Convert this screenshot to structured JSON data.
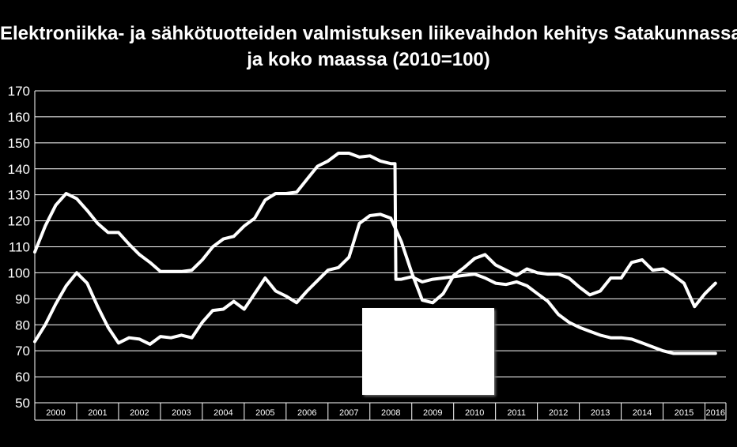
{
  "title_line1": "Elektroniikka- ja sähkötuotteiden valmistuksen liikevaihdon kehitys Satakunnassa",
  "title_line2": "ja koko maassa (2010=100)",
  "colors": {
    "background": "#000000",
    "lines": "#ffffff",
    "text": "#ffffff",
    "grid": "#ffffff"
  },
  "chart_data": {
    "type": "line",
    "title": "Elektroniikka- ja sähkötuotteiden valmistuksen liikevaihdon kehitys Satakunnassa ja koko maassa (2010=100)",
    "xlabel": "",
    "ylabel": "",
    "ylim": [
      50,
      170
    ],
    "yticks": [
      50,
      60,
      70,
      80,
      90,
      100,
      110,
      120,
      130,
      140,
      150,
      160,
      170
    ],
    "xlim": [
      2000,
      2016.5
    ],
    "xticks": [
      "2000",
      "2001",
      "2002",
      "2003",
      "2004",
      "2005",
      "2006",
      "2007",
      "2008",
      "2009",
      "2010",
      "2011",
      "2012",
      "2013",
      "2014",
      "2015",
      "2016"
    ],
    "grid": true,
    "legend": "hidden",
    "series": [
      {
        "x": [
          2000.0,
          2000.25,
          2000.5,
          2000.75,
          2001.0,
          2001.25,
          2001.5,
          2001.75,
          2002.0,
          2002.25,
          2002.5,
          2002.75,
          2003.0,
          2003.25,
          2003.5,
          2003.75,
          2004.0,
          2004.25,
          2004.5,
          2004.75,
          2005.0,
          2005.25,
          2005.5,
          2005.75,
          2006.0,
          2006.25,
          2006.5,
          2006.75,
          2007.0,
          2007.25,
          2007.5,
          2007.75,
          2008.0,
          2008.25,
          2008.5,
          2008.6,
          2008.62,
          2008.75,
          2009.0,
          2009.25,
          2009.5,
          2009.75,
          2010.0,
          2010.25,
          2010.5,
          2010.75,
          2011.0,
          2011.25,
          2011.5,
          2011.75,
          2012.0,
          2012.25,
          2012.5,
          2012.75,
          2013.0,
          2013.25,
          2013.5,
          2013.75,
          2014.0,
          2014.25,
          2014.5,
          2014.75,
          2015.0,
          2015.25,
          2015.5,
          2015.75,
          2016.0,
          2016.25
        ],
        "values": [
          108,
          118,
          126,
          130.5,
          128.5,
          124,
          119,
          115.5,
          115.5,
          111,
          107,
          104,
          100.5,
          100.5,
          100.5,
          101,
          105,
          110,
          113,
          114,
          118,
          121,
          128,
          130.5,
          130.5,
          131,
          136,
          141,
          143,
          146,
          146,
          144.5,
          145,
          143,
          142,
          142,
          97.5,
          97.5,
          98.5,
          96.5,
          97.5,
          98,
          98.5,
          99,
          99.5,
          98,
          96,
          95.5,
          96.5,
          95,
          92,
          89,
          84,
          81,
          79,
          77.5,
          76,
          75,
          75,
          74.5,
          73,
          71.5,
          70,
          69,
          69,
          69,
          69,
          69
        ]
      },
      {
        "x": [
          2000.0,
          2000.25,
          2000.5,
          2000.75,
          2001.0,
          2001.25,
          2001.5,
          2001.75,
          2002.0,
          2002.25,
          2002.5,
          2002.75,
          2003.0,
          2003.25,
          2003.5,
          2003.75,
          2004.0,
          2004.25,
          2004.5,
          2004.75,
          2005.0,
          2005.25,
          2005.5,
          2005.75,
          2006.0,
          2006.25,
          2006.5,
          2006.75,
          2007.0,
          2007.25,
          2007.5,
          2007.75,
          2008.0,
          2008.25,
          2008.5,
          2008.75,
          2009.0,
          2009.25,
          2009.5,
          2009.75,
          2010.0,
          2010.25,
          2010.5,
          2010.75,
          2011.0,
          2011.25,
          2011.5,
          2011.75,
          2012.0,
          2012.25,
          2012.5,
          2012.75,
          2013.0,
          2013.25,
          2013.5,
          2013.75,
          2014.0,
          2014.25,
          2014.5,
          2014.75,
          2015.0,
          2015.25,
          2015.5,
          2015.75,
          2016.0,
          2016.25
        ],
        "values": [
          73.5,
          80,
          88,
          95,
          100,
          96,
          87,
          79,
          73,
          75,
          74.5,
          72.5,
          75.5,
          75,
          76,
          75,
          81,
          85.5,
          86,
          89,
          86,
          92,
          98,
          93,
          91,
          88.5,
          93,
          97,
          101,
          102,
          106,
          119,
          122,
          122.5,
          121,
          112,
          100,
          89.5,
          88.5,
          92,
          99,
          102,
          105.5,
          107,
          103,
          101,
          99,
          101.5,
          100,
          99.5,
          99.5,
          98,
          94.5,
          91.5,
          93,
          98,
          98,
          104,
          105,
          101,
          101.5,
          99,
          96,
          87,
          92,
          96
        ]
      }
    ]
  }
}
